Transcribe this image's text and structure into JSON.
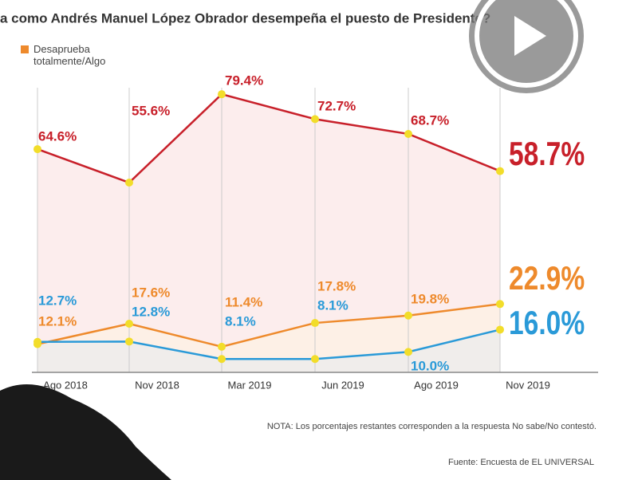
{
  "chart_data": {
    "type": "line",
    "title": "a como Andrés Manuel López Obrador desempeña el puesto de Presidente?",
    "categories": [
      "Ago 2018",
      "Nov 2018",
      "Mar 2019",
      "Jun 2019",
      "Ago 2019",
      "Nov 2019"
    ],
    "series": [
      {
        "color": "#c8202a",
        "values": [
          64.6,
          55.6,
          79.4,
          72.7,
          68.7,
          58.7
        ],
        "value_labels": [
          "64.6%",
          "55.6%",
          "79.4%",
          "72.7%",
          "68.7%",
          "58.7%"
        ]
      },
      {
        "name": "Desaprueba totalmente/Algo",
        "color": "#ee8a2c",
        "values": [
          12.1,
          17.6,
          11.4,
          17.8,
          19.8,
          22.9
        ],
        "value_labels": [
          "12.1%",
          "17.6%",
          "11.4%",
          "17.8%",
          "19.8%",
          "22.9%"
        ]
      },
      {
        "color": "#2a9ad8",
        "values": [
          12.7,
          12.8,
          8.1,
          8.1,
          10.0,
          16.0
        ],
        "value_labels": [
          "12.7%",
          "12.8%",
          "8.1%",
          "8.1%",
          "10.0%",
          "16.0%"
        ]
      }
    ],
    "ylim": [
      4.5,
      83.3
    ],
    "note": "NOTA: Los porcentajes restantes corresponden a la respuesta No sabe/No contestó.",
    "source": "Fuente: Encuesta de EL UNIVERSAL"
  }
}
